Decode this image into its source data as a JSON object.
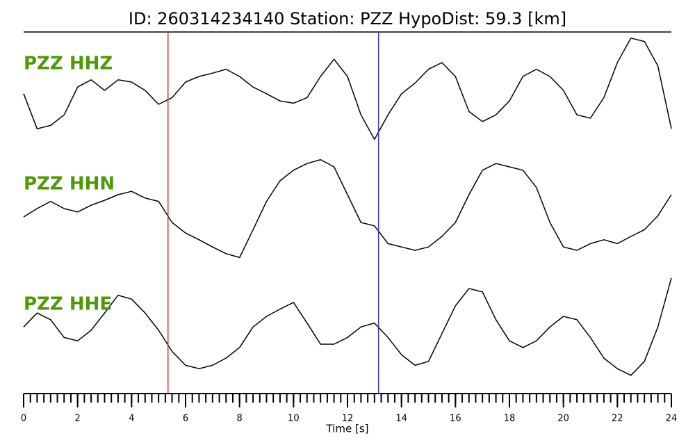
{
  "chart_data": {
    "type": "line",
    "title": "ID: 260314234140   Station: PZZ   HypoDist:    59.3 [km]",
    "xlabel": "Time [s]",
    "xlim": [
      0,
      24
    ],
    "xticks": [
      0,
      2,
      4,
      6,
      8,
      10,
      12,
      14,
      16,
      18,
      20,
      22,
      24
    ],
    "xminorticks": [
      0,
      0.25,
      0.5,
      0.75,
      1,
      1.25,
      1.5,
      1.75,
      2,
      2.25,
      2.5,
      2.75,
      3,
      3.25,
      3.5,
      3.75,
      4,
      4.25,
      4.5,
      4.75,
      5,
      5.25,
      5.5,
      5.75,
      6,
      6.25,
      6.5,
      6.75,
      7,
      7.25,
      7.5,
      7.75,
      8,
      8.25,
      8.5,
      8.75,
      9,
      9.25,
      9.5,
      9.75,
      10,
      10.25,
      10.5,
      10.75,
      11,
      11.25,
      11.5,
      11.75,
      12,
      12.25,
      12.5,
      12.75,
      13,
      13.25,
      13.5,
      13.75,
      14,
      14.25,
      14.5,
      14.75,
      15,
      15.25,
      15.5,
      15.75,
      16,
      16.25,
      16.5,
      16.75,
      17,
      17.25,
      17.5,
      17.75,
      18,
      18.25,
      18.5,
      18.75,
      19,
      19.25,
      19.5,
      19.75,
      20,
      20.25,
      20.5,
      20.75,
      21,
      21.25,
      21.5,
      21.75,
      22,
      22.25,
      22.5,
      22.75,
      23,
      23.25,
      23.5,
      23.75,
      24
    ],
    "ylim": [
      -1,
      1
    ],
    "label_color": "#4e9a06",
    "vlines": [
      {
        "x": 5.35,
        "color": "#e8302a"
      },
      {
        "x": 13.15,
        "color": "#3a3ab8"
      }
    ],
    "x": [
      0,
      0.5,
      1,
      1.5,
      2,
      2.5,
      3,
      3.5,
      4,
      4.5,
      5,
      5.5,
      6,
      6.5,
      7,
      7.5,
      8,
      8.5,
      9,
      9.5,
      10,
      10.5,
      11,
      11.5,
      12,
      12.5,
      13,
      13.5,
      14,
      14.5,
      15,
      15.5,
      16,
      16.5,
      17,
      17.5,
      18,
      18.5,
      19,
      19.5,
      20,
      20.5,
      21,
      21.5,
      22,
      22.5,
      23,
      23.5,
      24
    ],
    "series": [
      {
        "name": "PZZ HHZ",
        "color": "#000000",
        "values": [
          -0.06,
          -0.69,
          -0.63,
          -0.44,
          0.06,
          0.19,
          0,
          0.19,
          0.15,
          0,
          -0.25,
          -0.13,
          0.15,
          0.25,
          0.31,
          0.38,
          0.25,
          0.06,
          -0.06,
          -0.19,
          -0.23,
          -0.13,
          0.25,
          0.56,
          0.25,
          -0.44,
          -0.88,
          -0.44,
          -0.06,
          0.13,
          0.38,
          0.5,
          0.25,
          -0.38,
          -0.56,
          -0.44,
          -0.19,
          0.25,
          0.38,
          0.25,
          0,
          -0.44,
          -0.5,
          -0.13,
          0.5,
          0.94,
          0.88,
          0.44,
          -0.69
        ]
      },
      {
        "name": "PZZ HHN",
        "color": "#000000",
        "values": [
          -0.15,
          0,
          0.13,
          0,
          -0.06,
          0.06,
          0.15,
          0.25,
          0.31,
          0.19,
          0.13,
          -0.25,
          -0.44,
          -0.56,
          -0.69,
          -0.81,
          -0.88,
          -0.38,
          0.13,
          0.5,
          0.69,
          0.81,
          0.88,
          0.75,
          0.25,
          -0.25,
          -0.31,
          -0.63,
          -0.69,
          -0.75,
          -0.69,
          -0.5,
          -0.25,
          0.25,
          0.69,
          0.81,
          0.75,
          0.69,
          0.38,
          -0.25,
          -0.69,
          -0.75,
          -0.63,
          -0.56,
          -0.63,
          -0.5,
          -0.38,
          -0.13,
          0.25
        ]
      },
      {
        "name": "PZZ HHE",
        "color": "#000000",
        "values": [
          0.06,
          0.31,
          0.19,
          -0.13,
          -0.19,
          0,
          0.31,
          0.63,
          0.56,
          0.31,
          0,
          -0.38,
          -0.63,
          -0.69,
          -0.63,
          -0.5,
          -0.31,
          0.06,
          0.25,
          0.38,
          0.5,
          0.13,
          -0.25,
          -0.25,
          -0.13,
          0.06,
          0.13,
          -0.13,
          -0.44,
          -0.63,
          -0.56,
          -0.06,
          0.44,
          0.75,
          0.69,
          0.19,
          -0.19,
          -0.31,
          -0.19,
          0.06,
          0.25,
          0.19,
          -0.13,
          -0.5,
          -0.69,
          -0.81,
          -0.56,
          0.06,
          0.94
        ]
      }
    ]
  }
}
